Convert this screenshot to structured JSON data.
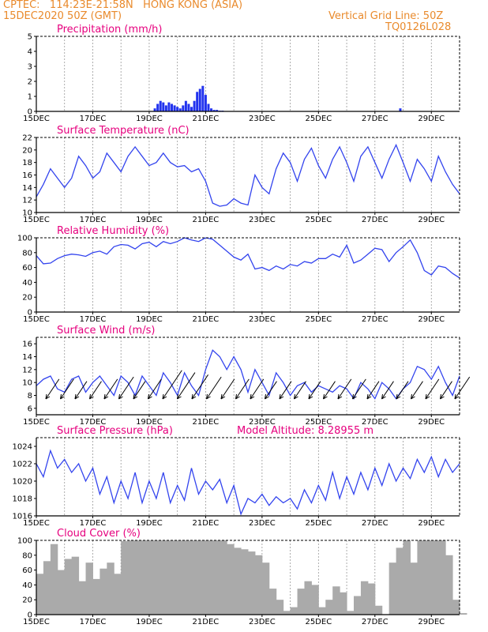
{
  "header": {
    "line1_left": "CPTEC:   114:23E-21:58N   HONG KONG (ASIA)",
    "line2_left": "15DEC2020 50Z (GMT)",
    "line1_right": "Vertical Grid Line: 50Z",
    "line2_right": "TQ0126L028"
  },
  "colors": {
    "line": "#3344ee",
    "bar": "#2233ee",
    "cloud": "#aaaaaa",
    "title": "#e6007e",
    "header": "#e98a2c"
  },
  "chart_data": [
    {
      "type": "bar",
      "title": "Precipitation (mm/h)",
      "ylim": [
        0,
        5
      ],
      "yticks": [
        0,
        1,
        2,
        3,
        4,
        5
      ],
      "xticks": [
        "15DEC",
        "17DEC",
        "19DEC",
        "21DEC",
        "23DEC",
        "25DEC",
        "27DEC",
        "29DEC"
      ],
      "x_day_range": [
        0,
        15
      ],
      "series": [
        {
          "x": [
            4.2,
            4.3,
            4.4,
            4.5,
            4.6,
            4.7,
            4.8,
            4.9,
            5.0,
            5.1,
            5.2,
            5.3,
            5.4,
            5.5,
            5.6,
            5.7,
            5.8,
            5.9,
            6.0,
            6.1,
            6.2,
            6.3,
            6.4,
            6.5,
            6.6,
            12.9
          ],
          "values": [
            0.2,
            0.5,
            0.7,
            0.6,
            0.4,
            0.6,
            0.5,
            0.4,
            0.3,
            0.2,
            0.4,
            0.7,
            0.5,
            0.3,
            0.7,
            1.3,
            1.5,
            1.7,
            1.1,
            0.5,
            0.2,
            0.1,
            0.1,
            0.05,
            0.05,
            0.2
          ]
        }
      ]
    },
    {
      "type": "line",
      "title": "Surface Temperature (nC)",
      "ylim": [
        10,
        22
      ],
      "yticks": [
        10,
        12,
        14,
        16,
        18,
        20,
        22
      ],
      "xticks": [
        "15DEC",
        "17DEC",
        "19DEC",
        "21DEC",
        "23DEC",
        "25DEC",
        "27DEC",
        "29DEC"
      ],
      "x_day_range": [
        0,
        15
      ],
      "series": [
        {
          "x": [
            0,
            0.25,
            0.5,
            0.75,
            1,
            1.25,
            1.5,
            1.75,
            2,
            2.25,
            2.5,
            2.75,
            3,
            3.25,
            3.5,
            3.75,
            4,
            4.25,
            4.5,
            4.75,
            5,
            5.25,
            5.5,
            5.75,
            6,
            6.25,
            6.5,
            6.75,
            7,
            7.25,
            7.5,
            7.75,
            8,
            8.25,
            8.5,
            8.75,
            9,
            9.25,
            9.5,
            9.75,
            10,
            10.25,
            10.5,
            10.75,
            11,
            11.25,
            11.5,
            11.75,
            12,
            12.25,
            12.5,
            12.75,
            13,
            13.25,
            13.5,
            13.75,
            14,
            14.25,
            14.5,
            14.75,
            15
          ],
          "values": [
            12.5,
            14.5,
            17,
            15.5,
            14,
            15.5,
            19,
            17.5,
            15.5,
            16.5,
            19.5,
            18,
            16.5,
            19,
            20.5,
            19,
            17.5,
            18,
            19.5,
            18,
            17.3,
            17.5,
            16.5,
            17,
            15,
            11.5,
            11,
            11.2,
            12.2,
            11.5,
            11.2,
            16,
            14,
            13,
            17,
            19.5,
            18,
            15,
            18.5,
            20.3,
            17.5,
            15.5,
            18.5,
            20.5,
            18,
            15,
            19,
            20.5,
            18,
            15.5,
            18.5,
            20.8,
            18,
            15,
            18.5,
            17,
            15,
            19,
            16.5,
            14.5,
            13
          ]
        }
      ]
    },
    {
      "type": "line",
      "title": "Relative Humidity (%)",
      "ylim": [
        0,
        100
      ],
      "yticks": [
        0,
        20,
        40,
        60,
        80,
        100
      ],
      "xticks": [
        "15DEC",
        "17DEC",
        "19DEC",
        "21DEC",
        "23DEC",
        "25DEC",
        "27DEC",
        "29DEC"
      ],
      "x_day_range": [
        0,
        15
      ],
      "series": [
        {
          "x": [
            0,
            0.25,
            0.5,
            0.75,
            1,
            1.25,
            1.5,
            1.75,
            2,
            2.25,
            2.5,
            2.75,
            3,
            3.25,
            3.5,
            3.75,
            4,
            4.25,
            4.5,
            4.75,
            5,
            5.25,
            5.5,
            5.75,
            6,
            6.25,
            6.5,
            6.75,
            7,
            7.25,
            7.5,
            7.75,
            8,
            8.25,
            8.5,
            8.75,
            9,
            9.25,
            9.5,
            9.75,
            10,
            10.25,
            10.5,
            10.75,
            11,
            11.25,
            11.5,
            11.75,
            12,
            12.25,
            12.5,
            12.75,
            13,
            13.25,
            13.5,
            13.75,
            14,
            14.25,
            14.5,
            14.75,
            15
          ],
          "values": [
            76,
            65,
            66,
            72,
            76,
            78,
            77,
            75,
            80,
            82,
            78,
            88,
            91,
            90,
            85,
            92,
            94,
            88,
            95,
            92,
            95,
            100,
            97,
            95,
            100,
            98,
            90,
            82,
            74,
            70,
            78,
            58,
            60,
            56,
            62,
            58,
            64,
            62,
            68,
            66,
            72,
            72,
            78,
            74,
            90,
            66,
            70,
            78,
            86,
            84,
            68,
            80,
            88,
            97,
            80,
            56,
            50,
            62,
            60,
            52,
            46
          ]
        }
      ]
    },
    {
      "type": "line",
      "title": "Surface Wind (m/s)",
      "ylim": [
        5,
        17
      ],
      "yticks": [
        6,
        8,
        10,
        12,
        14,
        16
      ],
      "xticks": [
        "15DEC",
        "17DEC",
        "19DEC",
        "21DEC",
        "23DEC",
        "25DEC",
        "27DEC",
        "29DEC"
      ],
      "x_day_range": [
        0,
        15
      ],
      "series": [
        {
          "x": [
            0,
            0.25,
            0.5,
            0.75,
            1,
            1.25,
            1.5,
            1.75,
            2,
            2.25,
            2.5,
            2.75,
            3,
            3.25,
            3.5,
            3.75,
            4,
            4.25,
            4.5,
            4.75,
            5,
            5.25,
            5.5,
            5.75,
            6,
            6.25,
            6.5,
            6.75,
            7,
            7.25,
            7.5,
            7.75,
            8,
            8.25,
            8.5,
            8.75,
            9,
            9.25,
            9.5,
            9.75,
            10,
            10.25,
            10.5,
            10.75,
            11,
            11.25,
            11.5,
            11.75,
            12,
            12.25,
            12.5,
            12.75,
            13,
            13.25,
            13.5,
            13.75,
            14,
            14.25,
            14.5,
            14.75,
            15
          ],
          "values": [
            9.5,
            10.5,
            11,
            9,
            8.5,
            10.5,
            11,
            8.5,
            10,
            11,
            9.5,
            8,
            11,
            10,
            8,
            11,
            9.5,
            8,
            11.5,
            10,
            8,
            11.5,
            9.5,
            8,
            12,
            15,
            14,
            12,
            14,
            12,
            8.5,
            12,
            10,
            8,
            11.5,
            10,
            8,
            9.5,
            10,
            8.5,
            9.5,
            9,
            8.5,
            9.5,
            9,
            7.5,
            10,
            9,
            7.5,
            10,
            9,
            7.5,
            9,
            10,
            12.5,
            12,
            10.5,
            12.5,
            10,
            8,
            11
          ]
        }
      ],
      "barbs": {
        "speed": [
          9,
          9,
          8,
          8,
          9,
          10,
          8,
          9,
          13,
          12,
          11,
          10,
          9,
          9,
          9,
          8,
          8,
          8,
          8,
          8,
          9,
          9,
          8,
          8,
          8,
          8,
          9,
          8,
          10
        ]
      }
    },
    {
      "type": "line",
      "title": "Surface Pressure (hPa)",
      "annotation": "Model Altitude: 8.28955  m",
      "ylim": [
        1016,
        1025
      ],
      "yticks": [
        1016,
        1018,
        1020,
        1022,
        1024
      ],
      "xticks": [
        "15DEC",
        "17DEC",
        "19DEC",
        "21DEC",
        "23DEC",
        "25DEC",
        "27DEC",
        "29DEC"
      ],
      "x_day_range": [
        0,
        15
      ],
      "series": [
        {
          "x": [
            0,
            0.25,
            0.5,
            0.75,
            1,
            1.25,
            1.5,
            1.75,
            2,
            2.25,
            2.5,
            2.75,
            3,
            3.25,
            3.5,
            3.75,
            4,
            4.25,
            4.5,
            4.75,
            5,
            5.25,
            5.5,
            5.75,
            6,
            6.25,
            6.5,
            6.75,
            7,
            7.25,
            7.5,
            7.75,
            8,
            8.25,
            8.5,
            8.75,
            9,
            9.25,
            9.5,
            9.75,
            10,
            10.25,
            10.5,
            10.75,
            11,
            11.25,
            11.5,
            11.75,
            12,
            12.25,
            12.5,
            12.75,
            13,
            13.25,
            13.5,
            13.75,
            14,
            14.25,
            14.5,
            14.75,
            15
          ],
          "values": [
            1022,
            1020.5,
            1023.5,
            1021.5,
            1022.5,
            1021,
            1022,
            1020,
            1021.5,
            1018.5,
            1020.5,
            1017.5,
            1020,
            1018,
            1021,
            1017.5,
            1020,
            1018,
            1021,
            1017.5,
            1019.5,
            1017.8,
            1021.5,
            1018.5,
            1020,
            1019,
            1020.2,
            1017.5,
            1019.5,
            1016.2,
            1018,
            1017.5,
            1018.5,
            1017.2,
            1018.2,
            1017.5,
            1018,
            1016.8,
            1019,
            1017.5,
            1019.5,
            1017.8,
            1021,
            1018,
            1020.5,
            1018.5,
            1021,
            1019,
            1021.5,
            1019.5,
            1022,
            1020,
            1021.5,
            1020.3,
            1022.5,
            1021,
            1022.8,
            1020.5,
            1022.5,
            1021,
            1022
          ]
        }
      ]
    },
    {
      "type": "area",
      "title": "Cloud Cover (%)",
      "ylim": [
        0,
        100
      ],
      "yticks": [
        0,
        20,
        40,
        60,
        80,
        100
      ],
      "xticks": [
        "15DEC",
        "17DEC",
        "19DEC",
        "21DEC",
        "23DEC",
        "25DEC",
        "27DEC",
        "29DEC"
      ],
      "x_day_range": [
        0,
        15
      ],
      "series": [
        {
          "x": [
            0,
            0.25,
            0.5,
            0.75,
            1,
            1.25,
            1.5,
            1.75,
            2,
            2.25,
            2.5,
            2.75,
            3,
            3.25,
            3.5,
            3.75,
            4,
            4.25,
            4.5,
            4.75,
            5,
            5.25,
            5.5,
            5.75,
            6,
            6.25,
            6.5,
            6.75,
            7,
            7.25,
            7.5,
            7.75,
            8,
            8.25,
            8.5,
            8.75,
            9,
            9.25,
            9.5,
            9.75,
            10,
            10.25,
            10.5,
            10.75,
            11,
            11.25,
            11.5,
            11.75,
            12,
            12.25,
            12.5,
            12.75,
            13,
            13.25,
            13.5,
            13.75,
            14,
            14.25,
            14.5,
            14.75,
            15
          ],
          "values": [
            55,
            72,
            95,
            60,
            75,
            78,
            45,
            70,
            48,
            62,
            70,
            55,
            99,
            100,
            100,
            100,
            100,
            100,
            100,
            100,
            100,
            100,
            100,
            100,
            100,
            100,
            100,
            95,
            90,
            88,
            85,
            80,
            70,
            35,
            20,
            5,
            10,
            35,
            45,
            40,
            10,
            20,
            38,
            30,
            5,
            25,
            45,
            42,
            12,
            0,
            70,
            90,
            100,
            70,
            100,
            100,
            100,
            100,
            80,
            20,
            2
          ]
        }
      ]
    }
  ]
}
